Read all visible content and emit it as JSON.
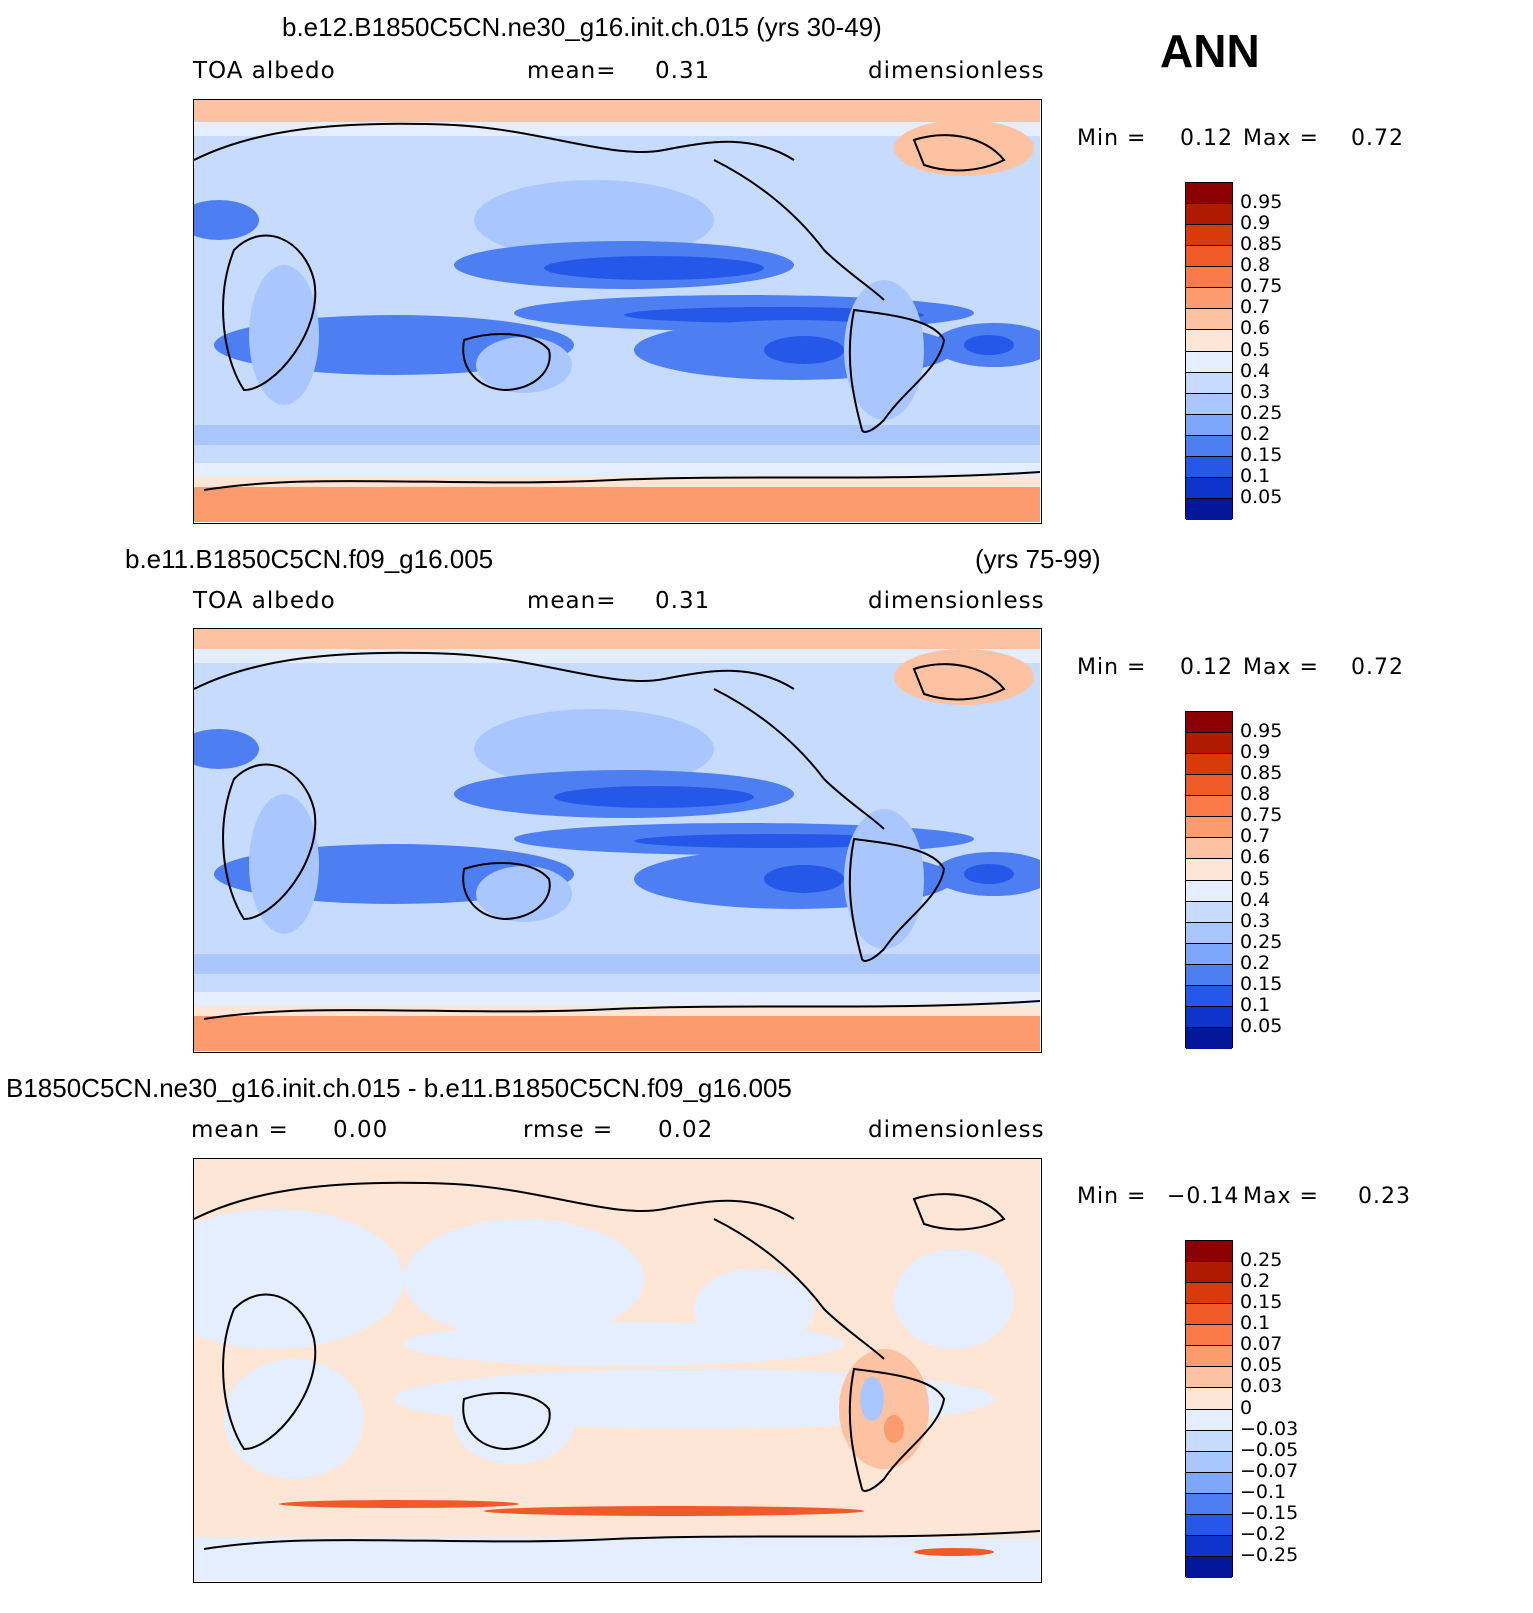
{
  "season": "ANN",
  "panels": [
    {
      "title": "b.e12.B1850C5CN.ne30_g16.init.ch.015 (yrs 30-49)",
      "title_right": "",
      "left_label": "TOA albedo",
      "mid_label": "mean=",
      "mid_value": "0.31",
      "unit": "dimensionless",
      "min_label": "Min =",
      "min_value": "0.12",
      "max_label": "Max =",
      "max_value": "0.72",
      "levels": [
        "0.95",
        "0.9",
        "0.85",
        "0.8",
        "0.75",
        "0.7",
        "0.6",
        "0.5",
        "0.4",
        "0.3",
        "0.25",
        "0.2",
        "0.15",
        "0.1",
        "0.05"
      ],
      "colors": [
        "#8b0000",
        "#b01a00",
        "#d93a0a",
        "#f05a28",
        "#fa7a48",
        "#fc9b6e",
        "#fdc2a2",
        "#fde6d6",
        "#e4eeff",
        "#c7dbff",
        "#a9c6ff",
        "#7ea7fb",
        "#4d7ff3",
        "#2558e8",
        "#0f34cc",
        "#04169a"
      ]
    },
    {
      "title": "b.e11.B1850C5CN.f09_g16.005",
      "title_right": "(yrs 75-99)",
      "left_label": "TOA albedo",
      "mid_label": "mean=",
      "mid_value": "0.31",
      "unit": "dimensionless",
      "min_label": "Min =",
      "min_value": "0.12",
      "max_label": "Max =",
      "max_value": "0.72",
      "levels": [
        "0.95",
        "0.9",
        "0.85",
        "0.8",
        "0.75",
        "0.7",
        "0.6",
        "0.5",
        "0.4",
        "0.3",
        "0.25",
        "0.2",
        "0.15",
        "0.1",
        "0.05"
      ],
      "colors": [
        "#8b0000",
        "#b01a00",
        "#d93a0a",
        "#f05a28",
        "#fa7a48",
        "#fc9b6e",
        "#fdc2a2",
        "#fde6d6",
        "#e4eeff",
        "#c7dbff",
        "#a9c6ff",
        "#7ea7fb",
        "#4d7ff3",
        "#2558e8",
        "#0f34cc",
        "#04169a"
      ]
    },
    {
      "title": "B1850C5CN.ne30_g16.init.ch.015 - b.e11.B1850C5CN.f09_g16.005",
      "title_right": "",
      "left_label": "mean =",
      "left_value": "0.00",
      "mid_label": "rmse =",
      "mid_value": "0.02",
      "unit": "dimensionless",
      "min_label": "Min =",
      "min_value": "−0.14",
      "max_label": "Max =",
      "max_value": "0.23",
      "levels": [
        "0.25",
        "0.2",
        "0.15",
        "0.1",
        "0.07",
        "0.05",
        "0.03",
        "0",
        "−0.03",
        "−0.05",
        "−0.07",
        "−0.1",
        "−0.15",
        "−0.2",
        "−0.25"
      ],
      "colors": [
        "#8b0000",
        "#b01a00",
        "#d93a0a",
        "#f05a28",
        "#fa7a48",
        "#fc9b6e",
        "#fdc2a2",
        "#fde6d6",
        "#e4eeff",
        "#c7dbff",
        "#a9c6ff",
        "#7ea7fb",
        "#4d7ff3",
        "#2558e8",
        "#0f34cc",
        "#04169a"
      ]
    }
  ]
}
